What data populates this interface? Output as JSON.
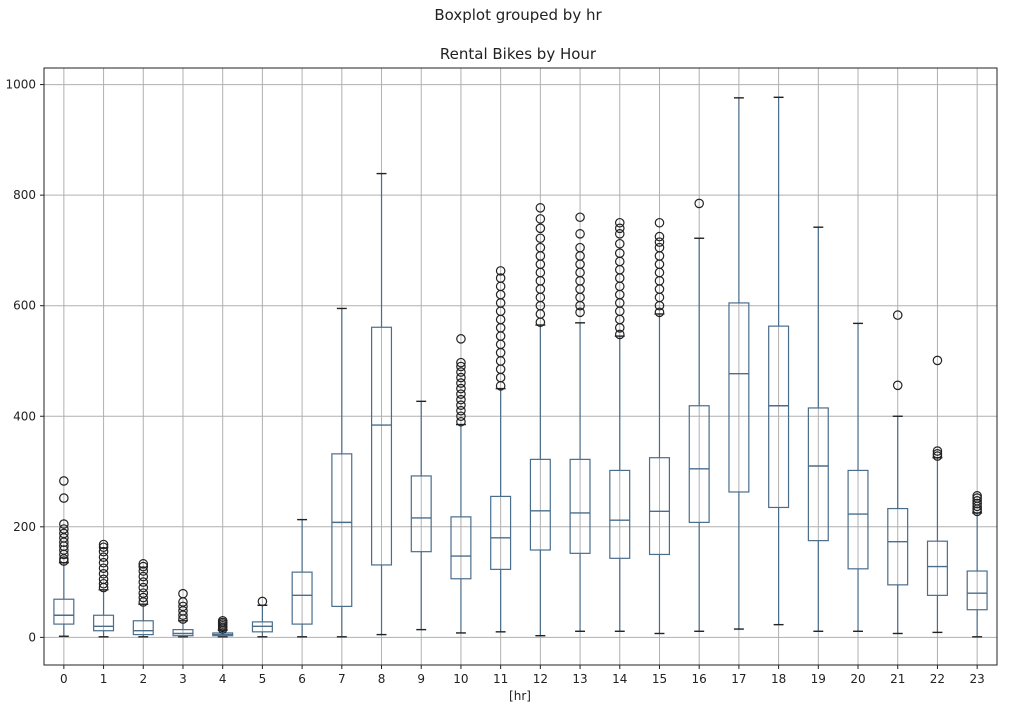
{
  "chart_data": {
    "type": "box",
    "suptitle": "Boxplot grouped by hr",
    "title": "Rental Bikes by Hour",
    "xlabel": "[hr]",
    "ylabel": "",
    "ylim": [
      -50,
      1030
    ],
    "yticks": [
      0,
      200,
      400,
      600,
      800,
      1000
    ],
    "grid": true,
    "categories": [
      "0",
      "1",
      "2",
      "3",
      "4",
      "5",
      "6",
      "7",
      "8",
      "9",
      "10",
      "11",
      "12",
      "13",
      "14",
      "15",
      "16",
      "17",
      "18",
      "19",
      "20",
      "21",
      "22",
      "23"
    ],
    "boxes": [
      {
        "min": 2,
        "q1": 24,
        "median": 40,
        "q3": 69,
        "max": 135,
        "fliers": [
          138,
          142,
          150,
          158,
          165,
          172,
          180,
          188,
          196,
          205,
          252,
          283
        ]
      },
      {
        "min": 1,
        "q1": 12,
        "median": 20,
        "q3": 40,
        "max": 86,
        "fliers": [
          90,
          97,
          105,
          115,
          125,
          135,
          145,
          155,
          163,
          168
        ]
      },
      {
        "min": 1,
        "q1": 5,
        "median": 12,
        "q3": 30,
        "max": 60,
        "fliers": [
          64,
          72,
          80,
          90,
          100,
          110,
          120,
          128,
          133
        ]
      },
      {
        "min": 1,
        "q1": 3,
        "median": 7,
        "q3": 14,
        "max": 30,
        "fliers": [
          33,
          40,
          48,
          56,
          64,
          79
        ]
      },
      {
        "min": 1,
        "q1": 3,
        "median": 5,
        "q3": 8,
        "max": 13,
        "fliers": [
          15,
          18,
          21,
          24,
          27,
          30
        ]
      },
      {
        "min": 1,
        "q1": 10,
        "median": 20,
        "q3": 28,
        "max": 58,
        "fliers": [
          65
        ]
      },
      {
        "min": 1,
        "q1": 24,
        "median": 76,
        "q3": 118,
        "max": 213,
        "fliers": []
      },
      {
        "min": 1,
        "q1": 56,
        "median": 208,
        "q3": 332,
        "max": 595,
        "fliers": []
      },
      {
        "min": 5,
        "q1": 131,
        "median": 384,
        "q3": 561,
        "max": 839,
        "fliers": []
      },
      {
        "min": 14,
        "q1": 155,
        "median": 216,
        "q3": 292,
        "max": 427,
        "fliers": []
      },
      {
        "min": 8,
        "q1": 106,
        "median": 147,
        "q3": 218,
        "max": 385,
        "fliers": [
          390,
          400,
          410,
          420,
          430,
          440,
          450,
          460,
          470,
          480,
          490,
          497,
          540
        ]
      },
      {
        "min": 10,
        "q1": 123,
        "median": 180,
        "q3": 255,
        "max": 450,
        "fliers": [
          455,
          470,
          485,
          500,
          515,
          530,
          545,
          560,
          575,
          590,
          605,
          620,
          635,
          650,
          663
        ]
      },
      {
        "min": 3,
        "q1": 158,
        "median": 229,
        "q3": 322,
        "max": 565,
        "fliers": [
          570,
          585,
          600,
          615,
          630,
          645,
          660,
          675,
          690,
          705,
          722,
          740,
          757,
          777
        ]
      },
      {
        "min": 11,
        "q1": 152,
        "median": 225,
        "q3": 322,
        "max": 569,
        "fliers": [
          588,
          600,
          615,
          630,
          645,
          660,
          675,
          690,
          705,
          730,
          760
        ]
      },
      {
        "min": 11,
        "q1": 143,
        "median": 212,
        "q3": 302,
        "max": 545,
        "fliers": [
          548,
          560,
          575,
          590,
          605,
          620,
          635,
          650,
          665,
          680,
          695,
          712,
          730,
          740,
          750
        ]
      },
      {
        "min": 7,
        "q1": 150,
        "median": 228,
        "q3": 325,
        "max": 585,
        "fliers": [
          588,
          600,
          615,
          630,
          645,
          660,
          675,
          690,
          705,
          715,
          725,
          750
        ]
      },
      {
        "min": 11,
        "q1": 208,
        "median": 305,
        "q3": 419,
        "max": 722,
        "fliers": [
          785
        ]
      },
      {
        "min": 15,
        "q1": 263,
        "median": 477,
        "q3": 605,
        "max": 976,
        "fliers": []
      },
      {
        "min": 23,
        "q1": 235,
        "median": 419,
        "q3": 563,
        "max": 977,
        "fliers": []
      },
      {
        "min": 11,
        "q1": 175,
        "median": 310,
        "q3": 415,
        "max": 742,
        "fliers": []
      },
      {
        "min": 11,
        "q1": 124,
        "median": 223,
        "q3": 302,
        "max": 568,
        "fliers": []
      },
      {
        "min": 7,
        "q1": 95,
        "median": 173,
        "q3": 233,
        "max": 400,
        "fliers": [
          456,
          583
        ]
      },
      {
        "min": 9,
        "q1": 76,
        "median": 128,
        "q3": 174,
        "max": 325,
        "fliers": [
          328,
          332,
          337,
          501
        ]
      },
      {
        "min": 1,
        "q1": 50,
        "median": 80,
        "q3": 120,
        "max": 225,
        "fliers": [
          228,
          232,
          237,
          242,
          247,
          252,
          256
        ]
      }
    ]
  }
}
